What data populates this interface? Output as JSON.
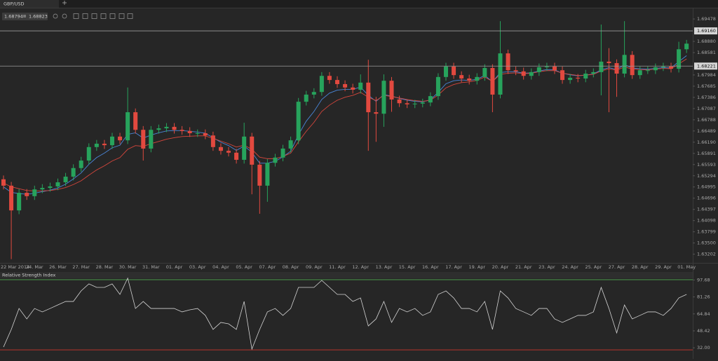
{
  "toolbar": {
    "tab": "GBP/USD",
    "bid": 1.68794,
    "ask": 1.68823
  },
  "chart_data": [
    {
      "type": "candlestick",
      "categories": [
        null,
        "22 Mar 2014",
        null,
        null,
        "24. Mar",
        null,
        null,
        "26. Mar",
        null,
        null,
        "27. Mar",
        null,
        null,
        "28. Mar",
        null,
        null,
        "30. Mar",
        null,
        null,
        "31. Mar",
        null,
        null,
        "01. Apr",
        null,
        null,
        "03. Apr",
        null,
        null,
        "04. Apr",
        null,
        null,
        "05. Apr",
        null,
        null,
        "07. Apr",
        null,
        null,
        "08. Apr",
        null,
        null,
        "09. Apr",
        null,
        null,
        "11. Apr",
        null,
        null,
        "12. Apr",
        null,
        null,
        "13. Apr",
        null,
        null,
        "15. Apr",
        null,
        null,
        "16. Apr",
        null,
        null,
        "17. Apr",
        null,
        null,
        "19. Apr",
        null,
        null,
        "20. Apr",
        null,
        null,
        "21. Apr",
        null,
        null,
        "23. Apr",
        null,
        null,
        "24. Apr",
        null,
        null,
        "25. Apr",
        null,
        null,
        "27. Apr",
        null,
        null,
        "28. Apr",
        null,
        null,
        "29. Apr",
        null,
        null,
        "01. May"
      ],
      "open": [
        1.652,
        1.6503,
        1.6437,
        1.6484,
        1.6475,
        1.6493,
        1.6497,
        1.6501,
        1.6512,
        1.6527,
        1.655,
        1.657,
        1.6606,
        1.6615,
        1.6611,
        1.6634,
        1.6624,
        1.6699,
        1.6652,
        1.6602,
        1.6652,
        1.6656,
        1.666,
        1.6652,
        1.6649,
        1.6643,
        1.6643,
        1.6637,
        1.6606,
        1.6596,
        1.6591,
        1.6572,
        1.6634,
        1.6559,
        1.6503,
        1.6564,
        1.6578,
        1.6602,
        1.6624,
        1.6727,
        1.6746,
        1.6753,
        1.6796,
        1.6785,
        1.6774,
        1.6765,
        1.6759,
        1.6778,
        1.6699,
        1.6695,
        1.6783,
        1.6733,
        1.6723,
        1.672,
        1.6722,
        1.6725,
        1.6742,
        1.6793,
        1.6821,
        1.6798,
        1.6789,
        1.6783,
        1.6793,
        1.6817,
        1.6746,
        1.6856,
        1.6811,
        1.6808,
        1.6796,
        1.6806,
        1.6819,
        1.6821,
        1.6811,
        1.6785,
        1.6791,
        1.6789,
        1.6802,
        1.6806,
        1.6834,
        1.683,
        1.6802,
        1.6852,
        1.6798,
        1.6811,
        1.6811,
        1.6819,
        1.6821,
        1.6815,
        1.6867
      ],
      "high": [
        1.653,
        1.6513,
        1.6494,
        1.6494,
        1.6503,
        1.6507,
        1.6511,
        1.6522,
        1.6537,
        1.656,
        1.658,
        1.6616,
        1.6625,
        1.6625,
        1.6644,
        1.6644,
        1.6765,
        1.6709,
        1.6662,
        1.6662,
        1.6666,
        1.667,
        1.667,
        1.6662,
        1.6659,
        1.6653,
        1.6653,
        1.6647,
        1.6616,
        1.6606,
        1.6601,
        1.6671,
        1.6644,
        1.6569,
        1.6574,
        1.6588,
        1.6612,
        1.6634,
        1.6737,
        1.6756,
        1.6763,
        1.6806,
        1.6806,
        1.6795,
        1.6784,
        1.6775,
        1.68,
        1.6839,
        1.674,
        1.68,
        1.6793,
        1.6743,
        1.6733,
        1.6732,
        1.6735,
        1.6752,
        1.6803,
        1.6831,
        1.6831,
        1.6808,
        1.6799,
        1.6803,
        1.6827,
        1.6827,
        1.6942,
        1.6866,
        1.6821,
        1.6818,
        1.6816,
        1.6829,
        1.6831,
        1.6831,
        1.6821,
        1.6801,
        1.6801,
        1.6812,
        1.6816,
        1.6933,
        1.687,
        1.684,
        1.6942,
        1.6862,
        1.6821,
        1.6821,
        1.6829,
        1.6831,
        1.6831,
        1.6887,
        1.6892
      ],
      "low": [
        1.6493,
        1.6307,
        1.6427,
        1.6465,
        1.6465,
        1.6483,
        1.6487,
        1.6491,
        1.6502,
        1.6517,
        1.654,
        1.656,
        1.6596,
        1.6601,
        1.6601,
        1.6614,
        1.6614,
        1.6642,
        1.657,
        1.6592,
        1.6642,
        1.6646,
        1.6642,
        1.6639,
        1.6633,
        1.6633,
        1.6627,
        1.6596,
        1.6586,
        1.6581,
        1.6562,
        1.6562,
        1.648,
        1.6428,
        1.646,
        1.6554,
        1.6568,
        1.6592,
        1.6614,
        1.6717,
        1.6736,
        1.6743,
        1.6775,
        1.6764,
        1.6755,
        1.6749,
        1.6749,
        1.6596,
        1.662,
        1.666,
        1.67,
        1.6713,
        1.671,
        1.671,
        1.6712,
        1.6715,
        1.6732,
        1.6783,
        1.6788,
        1.6779,
        1.6773,
        1.6773,
        1.6783,
        1.6699,
        1.6736,
        1.6801,
        1.6798,
        1.6786,
        1.6786,
        1.6796,
        1.6809,
        1.6801,
        1.6775,
        1.6775,
        1.6779,
        1.6779,
        1.6792,
        1.6744,
        1.6699,
        1.674,
        1.6792,
        1.6788,
        1.6788,
        1.6801,
        1.6801,
        1.6809,
        1.6805,
        1.6805,
        1.6857
      ],
      "close": [
        1.6503,
        1.6437,
        1.6484,
        1.6475,
        1.6493,
        1.6497,
        1.6501,
        1.6512,
        1.6527,
        1.655,
        1.657,
        1.6606,
        1.6615,
        1.6611,
        1.6634,
        1.6624,
        1.6699,
        1.6652,
        1.6602,
        1.6652,
        1.6656,
        1.666,
        1.6652,
        1.6649,
        1.6643,
        1.6643,
        1.6637,
        1.6606,
        1.6596,
        1.6591,
        1.6572,
        1.6634,
        1.6559,
        1.6503,
        1.6564,
        1.6578,
        1.6602,
        1.6624,
        1.6727,
        1.6746,
        1.6753,
        1.6796,
        1.6785,
        1.6774,
        1.6765,
        1.6759,
        1.6778,
        1.6699,
        1.6695,
        1.6783,
        1.6733,
        1.6723,
        1.672,
        1.6722,
        1.6725,
        1.6742,
        1.6793,
        1.6821,
        1.6798,
        1.6789,
        1.6783,
        1.6793,
        1.6817,
        1.6746,
        1.6856,
        1.6811,
        1.6808,
        1.6796,
        1.6806,
        1.6819,
        1.6821,
        1.6811,
        1.6785,
        1.6791,
        1.6789,
        1.6802,
        1.6806,
        1.6834,
        1.683,
        1.6802,
        1.6852,
        1.6798,
        1.6811,
        1.6811,
        1.6819,
        1.6821,
        1.6815,
        1.6867,
        1.6882
      ],
      "up_color": "#27a35c",
      "down_color": "#e2493f",
      "series": [
        {
          "color": "#4a86d8",
          "values": [
            1.65,
            1.6485,
            1.6482,
            1.648,
            1.6483,
            1.6487,
            1.6491,
            1.6497,
            1.6507,
            1.6521,
            1.6537,
            1.656,
            1.6578,
            1.659,
            1.6604,
            1.6611,
            1.664,
            1.6644,
            1.663,
            1.6638,
            1.6644,
            1.6649,
            1.665,
            1.665,
            1.6648,
            1.6646,
            1.6643,
            1.6631,
            1.6619,
            1.661,
            1.6597,
            1.6609,
            1.6592,
            1.6563,
            1.6563,
            1.6568,
            1.658,
            1.6595,
            1.6639,
            1.6675,
            1.6701,
            1.6733,
            1.675,
            1.6758,
            1.676,
            1.676,
            1.6766,
            1.6744,
            1.6728,
            1.6746,
            1.6742,
            1.6736,
            1.6731,
            1.6728,
            1.6727,
            1.6732,
            1.6752,
            1.6775,
            1.6783,
            1.6785,
            1.6784,
            1.6787,
            1.6797,
            1.678,
            1.6805,
            1.6807,
            1.6807,
            1.6803,
            1.6804,
            1.6809,
            1.6813,
            1.6812,
            1.6803,
            1.6799,
            1.6796,
            1.6798,
            1.6801,
            1.6812,
            1.6818,
            1.6813,
            1.6826,
            1.6817,
            1.6815,
            1.6814,
            1.6816,
            1.6818,
            1.6817,
            1.6834,
            1.685
          ]
        },
        {
          "color": "#d6463c",
          "values": [
            1.651,
            1.65,
            1.6495,
            1.649,
            1.6489,
            1.6489,
            1.649,
            1.6493,
            1.6498,
            1.6506,
            1.6516,
            1.6531,
            1.6545,
            1.6556,
            1.6569,
            1.6578,
            1.66,
            1.661,
            1.6608,
            1.6615,
            1.6621,
            1.6627,
            1.6631,
            1.6634,
            1.6635,
            1.6636,
            1.6636,
            1.6629,
            1.6622,
            1.6615,
            1.6606,
            1.6611,
            1.66,
            1.6579,
            1.6575,
            1.6575,
            1.6581,
            1.659,
            1.662,
            1.6648,
            1.6672,
            1.6701,
            1.6718,
            1.6731,
            1.6739,
            1.6744,
            1.6752,
            1.6739,
            1.673,
            1.6744,
            1.6741,
            1.6737,
            1.6733,
            1.673,
            1.6728,
            1.6731,
            1.6745,
            1.6764,
            1.6773,
            1.6778,
            1.678,
            1.6784,
            1.6793,
            1.6781,
            1.68,
            1.6803,
            1.6804,
            1.6802,
            1.6803,
            1.6807,
            1.681,
            1.681,
            1.6803,
            1.68,
            1.6797,
            1.6798,
            1.68,
            1.6809,
            1.6815,
            1.6811,
            1.682,
            1.6814,
            1.6813,
            1.6812,
            1.6814,
            1.6816,
            1.6815,
            1.6828,
            1.6841
          ]
        }
      ],
      "ylim": [
        1.6297,
        1.6976
      ],
      "yticks": [
        1.69478,
        {
          "value": 1.6888,
          "label": "1.68880"
        },
        1.68581,
        1.67984,
        1.67685,
        1.67386,
        1.67087,
        1.66788,
        1.66489,
        {
          "value": 1.6619,
          "label": "1.66190"
        },
        1.65891,
        1.65593,
        1.65294,
        1.64995,
        1.64696,
        1.64397,
        1.64098,
        1.63799,
        {
          "value": 1.635,
          "label": "1.63500"
        },
        1.63202
      ],
      "levels": [
        {
          "value": 1.6916,
          "label": "1.69160"
        },
        1.68221
      ]
    },
    {
      "type": "line",
      "title": "Relative Strength Index",
      "values": [
        32.8,
        49.8,
        70.1,
        60.0,
        70.1,
        66.8,
        70.1,
        73.5,
        76.9,
        76.9,
        87.1,
        93.9,
        90.5,
        90.5,
        93.9,
        83.7,
        99.5,
        70.1,
        76.9,
        70.1,
        70.1,
        70.1,
        70.1,
        66.8,
        68.8,
        70.1,
        63.4,
        49.8,
        56.6,
        55.2,
        49.8,
        76.9,
        30.8,
        49.8,
        66.8,
        70.1,
        63.4,
        70.1,
        90.5,
        90.5,
        90.5,
        97.3,
        90.5,
        83.7,
        83.7,
        76.9,
        80.3,
        53.2,
        60.0,
        76.9,
        56.6,
        70.1,
        66.8,
        70.1,
        63.4,
        66.8,
        83.7,
        87.1,
        80.3,
        70.1,
        70.1,
        66.8,
        76.9,
        49.8,
        87.1,
        80.3,
        70.1,
        66.8,
        63.4,
        70.1,
        70.1,
        60.0,
        56.6,
        60.0,
        63.4,
        63.4,
        66.8,
        90.5,
        70.1,
        46.4,
        73.5,
        60.0,
        63.4,
        66.8,
        66.8,
        63.4,
        70.1,
        80.3,
        83.7
      ],
      "color": "#d4d4d4",
      "ylim": [
        24,
        100
      ],
      "yticks": [
        97.68,
        81.26,
        64.84,
        48.42,
        {
          "value": 32,
          "label": "32.00"
        }
      ],
      "levels": [
        {
          "value": 98,
          "color": "#4c9a4c"
        },
        {
          "value": 30,
          "color": "#b8342e"
        }
      ]
    }
  ]
}
